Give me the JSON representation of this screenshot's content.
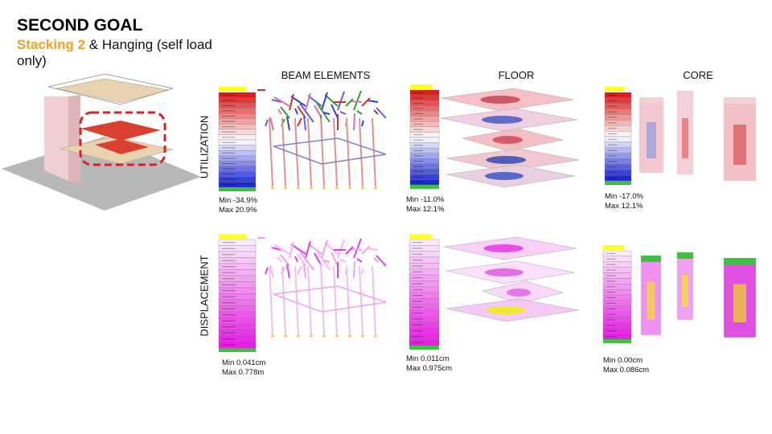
{
  "header": {
    "title": "SECOND GOAL",
    "subtitle_highlight": "Stacking 2",
    "subtitle": "& Hanging (self load only)"
  },
  "columns": [
    "BEAM ELEMENTS",
    "FLOOR",
    "CORE"
  ],
  "rows": [
    {
      "label": "UTILIZATION",
      "cells": [
        {
          "min": "Min -34.9%",
          "max": "Max 20.9%"
        },
        {
          "min": "Min -11.0%",
          "max": "Max 12.1%"
        },
        {
          "min": "Min -17.0%",
          "max": "Max 12.1%"
        }
      ]
    },
    {
      "label": "DISPLACEMENT",
      "cells": [
        {
          "min": "Min 0.041cm",
          "max": "Max 0.778m"
        },
        {
          "min": "Min 0.011cm",
          "max": "Max 0.975cm"
        },
        {
          "min": "Min 0.00cm",
          "max": "Max 0.086cm"
        }
      ]
    }
  ]
}
